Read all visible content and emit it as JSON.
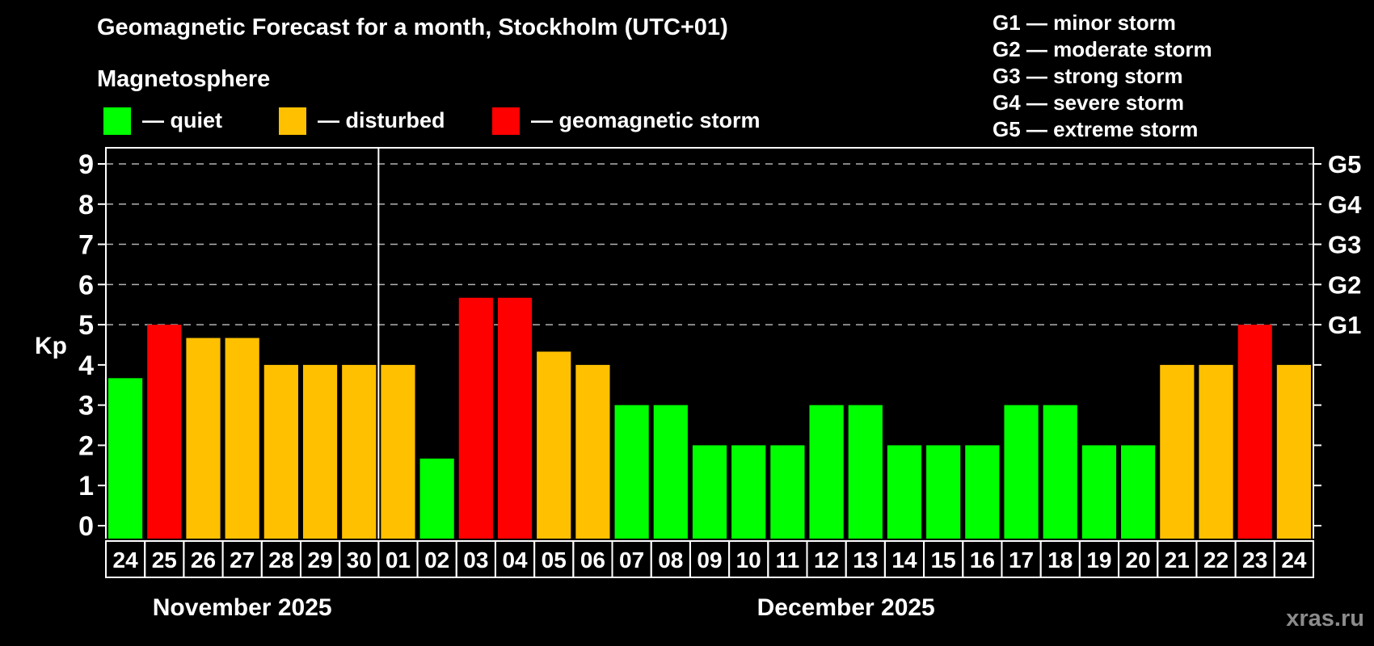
{
  "header": {
    "title": "Geomagnetic Forecast for a month, Stockholm (UTC+01)",
    "subtitle": "Magnetosphere"
  },
  "colors": {
    "quiet": "#00ff00",
    "disturbed": "#ffc000",
    "storm": "#ff0000",
    "grid": "#b3b3b3",
    "axis": "#ffffff",
    "watermark": "#8c8c8c",
    "background": "#000000"
  },
  "legend": {
    "items": [
      {
        "status": "quiet",
        "label": "— quiet"
      },
      {
        "status": "disturbed",
        "label": "— disturbed"
      },
      {
        "status": "storm",
        "label": "— geomagnetic storm"
      }
    ]
  },
  "g_scale_legend": {
    "lines": [
      "G1 — minor storm",
      "G2 — moderate storm",
      "G3 — strong storm",
      "G4 — severe storm",
      "G5 — extreme storm"
    ]
  },
  "watermark": "xras.ru",
  "chart_data": {
    "type": "bar",
    "title": "Geomagnetic Forecast for a month, Stockholm (UTC+01)",
    "ylabel": "Kp",
    "ylim": [
      0,
      9
    ],
    "y_ticks": [
      0,
      1,
      2,
      3,
      4,
      5,
      6,
      7,
      8,
      9
    ],
    "gridline_values": [
      5,
      6,
      7,
      8,
      9
    ],
    "grid": "dashed horizontal lines at storm levels only",
    "legend_position": "top-left",
    "right_axis": {
      "labels": [
        "G1",
        "G2",
        "G3",
        "G4",
        "G5"
      ],
      "values": [
        5,
        6,
        7,
        8,
        9
      ]
    },
    "categories": [
      "24",
      "25",
      "26",
      "27",
      "28",
      "29",
      "30",
      "01",
      "02",
      "03",
      "04",
      "05",
      "06",
      "07",
      "08",
      "09",
      "10",
      "11",
      "12",
      "13",
      "14",
      "15",
      "16",
      "17",
      "18",
      "19",
      "20",
      "21",
      "22",
      "23",
      "24"
    ],
    "values": [
      3.67,
      5,
      4.67,
      4.67,
      4,
      4,
      4,
      4,
      1.67,
      5.67,
      5.67,
      4.33,
      4,
      3,
      3,
      2,
      2,
      2,
      3,
      3,
      2,
      2,
      2,
      3,
      3,
      2,
      2,
      4,
      4,
      5,
      4
    ],
    "statuses": [
      "quiet",
      "storm",
      "disturbed",
      "disturbed",
      "disturbed",
      "disturbed",
      "disturbed",
      "disturbed",
      "quiet",
      "storm",
      "storm",
      "disturbed",
      "disturbed",
      "quiet",
      "quiet",
      "quiet",
      "quiet",
      "quiet",
      "quiet",
      "quiet",
      "quiet",
      "quiet",
      "quiet",
      "quiet",
      "quiet",
      "quiet",
      "quiet",
      "disturbed",
      "disturbed",
      "storm",
      "disturbed"
    ],
    "months": [
      {
        "label": "November 2025",
        "start_index": 0,
        "days": 7
      },
      {
        "label": "December 2025",
        "start_index": 7,
        "days": 24
      }
    ]
  }
}
